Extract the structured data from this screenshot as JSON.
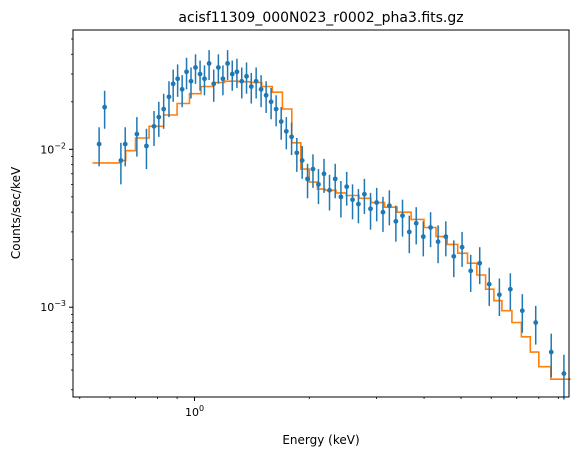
{
  "chart_data": {
    "type": "scatter",
    "title": "acisf11309_000N023_r0002_pha3.fits.gz",
    "xlabel": "Energy (keV)",
    "ylabel": "Counts/sec/keV",
    "xscale": "log",
    "yscale": "log",
    "xlim": [
      0.48,
      9.6
    ],
    "ylim": [
      0.00027,
      0.057
    ],
    "grid": false,
    "x_ticks": [
      {
        "value": 1,
        "label": "10",
        "exp": "0"
      }
    ],
    "y_ticks": [
      {
        "value": 0.001,
        "label": "10",
        "exp": "−3"
      },
      {
        "value": 0.01,
        "label": "10",
        "exp": "−2"
      }
    ],
    "colors": {
      "data": "#1f77b4",
      "model": "#ff7f0e"
    },
    "series": [
      {
        "kind": "errorbar",
        "x": [
          0.562,
          0.581,
          0.641,
          0.658,
          0.706,
          0.748,
          0.783,
          0.806,
          0.83,
          0.857,
          0.879,
          0.903,
          0.928,
          0.953,
          0.979,
          1.006,
          1.034,
          1.062,
          1.092,
          1.123,
          1.155,
          1.187,
          1.221,
          1.256,
          1.292,
          1.33,
          1.369,
          1.409,
          1.451,
          1.495,
          1.541,
          1.588,
          1.637,
          1.688,
          1.741,
          1.797,
          1.855,
          1.916,
          1.979,
          2.045,
          2.114,
          2.186,
          2.26,
          2.339,
          2.421,
          2.507,
          2.597,
          2.691,
          2.79,
          2.895,
          3.005,
          3.121,
          3.244,
          3.374,
          3.512,
          3.659,
          3.815,
          3.982,
          4.161,
          4.354,
          4.562,
          4.787,
          5.033,
          5.302,
          5.599,
          5.93,
          6.305,
          6.736,
          7.241,
          7.852,
          8.622,
          9.31
        ],
        "y": [
          0.0108,
          0.0185,
          0.0085,
          0.0108,
          0.0125,
          0.0105,
          0.014,
          0.016,
          0.018,
          0.0215,
          0.026,
          0.028,
          0.024,
          0.031,
          0.027,
          0.033,
          0.03,
          0.028,
          0.035,
          0.026,
          0.033,
          0.028,
          0.035,
          0.03,
          0.031,
          0.027,
          0.029,
          0.025,
          0.027,
          0.024,
          0.022,
          0.02,
          0.018,
          0.015,
          0.013,
          0.012,
          0.0095,
          0.0085,
          0.0065,
          0.0075,
          0.006,
          0.007,
          0.0055,
          0.0065,
          0.005,
          0.0058,
          0.0048,
          0.0045,
          0.0052,
          0.0042,
          0.0046,
          0.004,
          0.0044,
          0.0035,
          0.0038,
          0.003,
          0.0034,
          0.0028,
          0.0032,
          0.0026,
          0.0028,
          0.0021,
          0.0024,
          0.0017,
          0.0019,
          0.0014,
          0.0012,
          0.0013,
          0.00095,
          0.0008,
          0.00052,
          0.00038
        ],
        "yerr": [
          0.003,
          0.005,
          0.0025,
          0.003,
          0.0035,
          0.003,
          0.0035,
          0.004,
          0.0045,
          0.0055,
          0.006,
          0.0065,
          0.0055,
          0.007,
          0.006,
          0.007,
          0.0065,
          0.006,
          0.0075,
          0.006,
          0.007,
          0.006,
          0.0075,
          0.0065,
          0.0065,
          0.006,
          0.0065,
          0.0055,
          0.006,
          0.0055,
          0.005,
          0.0045,
          0.004,
          0.0035,
          0.003,
          0.0028,
          0.0023,
          0.002,
          0.0016,
          0.0018,
          0.0015,
          0.0017,
          0.0014,
          0.0016,
          0.0013,
          0.0014,
          0.0012,
          0.0011,
          0.0013,
          0.0011,
          0.0011,
          0.001,
          0.0011,
          0.0009,
          0.001,
          0.0008,
          0.0009,
          0.0007,
          0.0008,
          0.0007,
          0.0007,
          0.00055,
          0.0006,
          0.00045,
          0.0005,
          0.00038,
          0.00032,
          0.00034,
          0.00026,
          0.00022,
          0.00016,
          0.00012
        ]
      },
      {
        "kind": "step",
        "x": [
          0.54,
          0.6,
          0.64,
          0.66,
          0.7,
          0.76,
          0.83,
          0.9,
          0.97,
          1.04,
          1.12,
          1.2,
          1.3,
          1.4,
          1.5,
          1.6,
          1.7,
          1.8,
          1.9,
          2.0,
          2.1,
          2.2,
          2.35,
          2.5,
          2.7,
          2.9,
          3.15,
          3.4,
          3.7,
          4.0,
          4.3,
          4.6,
          4.9,
          5.2,
          5.5,
          5.8,
          6.1,
          6.4,
          6.8,
          7.2,
          7.6,
          8.0,
          8.6,
          9.0,
          9.4,
          9.7
        ],
        "y": [
          0.0082,
          0.0082,
          0.0085,
          0.0098,
          0.0118,
          0.014,
          0.0165,
          0.0195,
          0.0225,
          0.025,
          0.0265,
          0.027,
          0.0268,
          0.0265,
          0.025,
          0.023,
          0.018,
          0.011,
          0.0075,
          0.0062,
          0.0056,
          0.0055,
          0.0053,
          0.0051,
          0.0049,
          0.0046,
          0.0043,
          0.004,
          0.0036,
          0.0032,
          0.0028,
          0.0025,
          0.0022,
          0.0019,
          0.0016,
          0.0013,
          0.0011,
          0.00095,
          0.0008,
          0.00065,
          0.00052,
          0.00042,
          0.00035,
          0.00035,
          0.00035,
          0.00035
        ]
      }
    ]
  }
}
